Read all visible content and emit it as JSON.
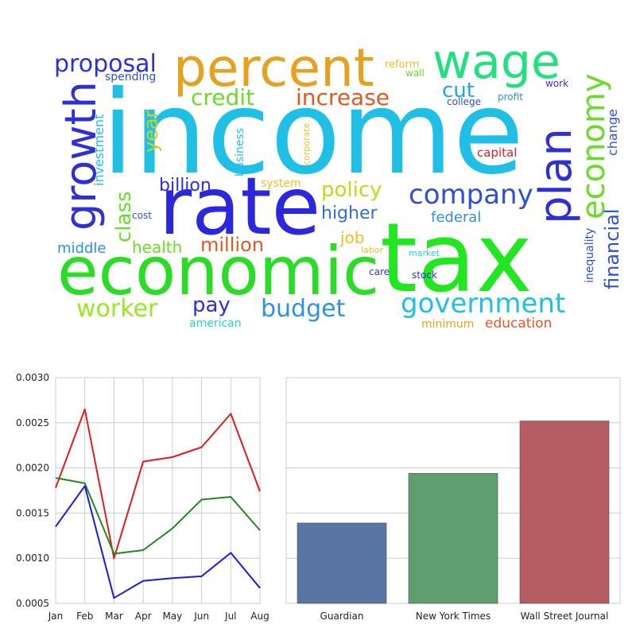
{
  "chart_data": [
    {
      "type": "wordcloud",
      "words": [
        {
          "text": "income",
          "color": "#1fbfe6"
        },
        {
          "text": "tax",
          "color": "#22e61f"
        },
        {
          "text": "rate",
          "color": "#2a27dc"
        },
        {
          "text": "economic",
          "color": "#2bdc27"
        },
        {
          "text": "percent",
          "color": "#e6a21f"
        },
        {
          "text": "wage",
          "color": "#22e07e"
        },
        {
          "text": "plan",
          "color": "#2f2fd6"
        },
        {
          "text": "growth",
          "color": "#2f2fd6"
        },
        {
          "text": "economy",
          "color": "#6adc27"
        },
        {
          "text": "government",
          "color": "#1fbfe6"
        },
        {
          "text": "company",
          "color": "#2f4fd6"
        },
        {
          "text": "proposal",
          "color": "#2f2fd6"
        },
        {
          "text": "budget",
          "color": "#2f8fe6"
        },
        {
          "text": "worker",
          "color": "#9ae61f"
        },
        {
          "text": "increase",
          "color": "#e05a1f"
        },
        {
          "text": "credit",
          "color": "#6adc27"
        },
        {
          "text": "policy",
          "color": "#c6d61f"
        },
        {
          "text": "financial",
          "color": "#2f4fd6"
        },
        {
          "text": "million",
          "color": "#e05a1f"
        },
        {
          "text": "pay",
          "color": "#2f2fd6"
        },
        {
          "text": "higher",
          "color": "#2f6fd6"
        },
        {
          "text": "cut",
          "color": "#1fa6e6"
        },
        {
          "text": "billion",
          "color": "#2f2fd6"
        },
        {
          "text": "class",
          "color": "#6adc27"
        },
        {
          "text": "year",
          "color": "#c6d61f"
        },
        {
          "text": "health",
          "color": "#6adc27"
        },
        {
          "text": "middle",
          "color": "#2f8fe6"
        },
        {
          "text": "job",
          "color": "#e6c21f"
        },
        {
          "text": "federal",
          "color": "#2f8fe6"
        },
        {
          "text": "change",
          "color": "#2f4fd6"
        },
        {
          "text": "investment",
          "color": "#1fbfe6"
        },
        {
          "text": "education",
          "color": "#e05a1f"
        },
        {
          "text": "business",
          "color": "#1fbfe6"
        },
        {
          "text": "capital",
          "color": "#d61f2f"
        },
        {
          "text": "spending",
          "color": "#2f4fd6"
        },
        {
          "text": "system",
          "color": "#e6c21f"
        },
        {
          "text": "minimum",
          "color": "#e6a21f"
        },
        {
          "text": "american",
          "color": "#1fd6c6"
        },
        {
          "text": "inequality",
          "color": "#2f4fd6"
        },
        {
          "text": "reform",
          "color": "#e6c21f"
        },
        {
          "text": "wall",
          "color": "#6adc27"
        },
        {
          "text": "college",
          "color": "#2f4fd6"
        },
        {
          "text": "profit",
          "color": "#2f8fe6"
        },
        {
          "text": "work",
          "color": "#4a1fd6"
        },
        {
          "text": "corporate",
          "color": "#e6c21f"
        },
        {
          "text": "cost",
          "color": "#2f4fd6"
        },
        {
          "text": "labor",
          "color": "#e6c21f"
        },
        {
          "text": "market",
          "color": "#1fd6c6"
        },
        {
          "text": "care",
          "color": "#2f2fd6"
        },
        {
          "text": "stock",
          "color": "#2f2fd6"
        }
      ]
    },
    {
      "type": "line",
      "categories": [
        "Jan",
        "Feb",
        "Mar",
        "Apr",
        "May",
        "Jun",
        "Jul",
        "Aug"
      ],
      "series": [
        {
          "color": "#e41a1c",
          "values": [
            0.00178,
            0.00265,
            0.001,
            0.00207,
            0.00212,
            0.00223,
            0.0026,
            0.00174
          ]
        },
        {
          "color": "#1f8a1f",
          "values": [
            0.00189,
            0.00183,
            0.00105,
            0.00109,
            0.00133,
            0.00165,
            0.00168,
            0.00131
          ]
        },
        {
          "color": "#1a1ae4",
          "values": [
            0.00135,
            0.0018,
            0.00056,
            0.00075,
            0.00078,
            0.0008,
            0.00106,
            0.00067
          ]
        }
      ],
      "ylim": [
        0.0005,
        0.003
      ],
      "yticks": [
        "0.0005",
        "0.0010",
        "0.0015",
        "0.0020",
        "0.0025",
        "0.0030"
      ],
      "grid": true
    },
    {
      "type": "bar",
      "categories": [
        "Guardian",
        "New York Times",
        "Wall Street Journal"
      ],
      "values": [
        0.00089,
        0.00144,
        0.00202
      ],
      "colors": [
        "#5875a4",
        "#5f9e6e",
        "#b55d60"
      ],
      "ylim": [
        0.0,
        0.0025
      ],
      "yticks": [
        "0.0000",
        "0.0005",
        "0.0010",
        "0.0015",
        "0.0020",
        "0.0025"
      ],
      "grid": true
    }
  ]
}
